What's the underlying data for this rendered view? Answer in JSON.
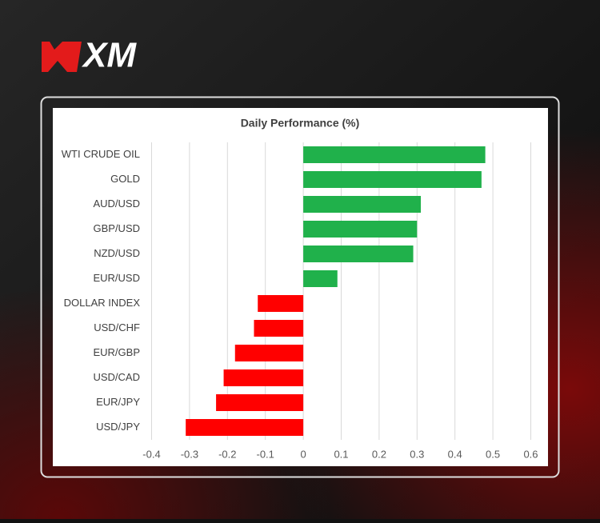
{
  "brand": "XM",
  "chart_data": {
    "type": "barh",
    "title": "Daily Performance (%)",
    "categories": [
      "WTI CRUDE OIL",
      "GOLD",
      "AUD/USD",
      "GBP/USD",
      "NZD/USD",
      "EUR/USD",
      "DOLLAR INDEX",
      "USD/CHF",
      "EUR/GBP",
      "USD/CAD",
      "EUR/JPY",
      "USD/JPY"
    ],
    "values": [
      0.48,
      0.47,
      0.31,
      0.3,
      0.29,
      0.09,
      -0.12,
      -0.13,
      -0.18,
      -0.21,
      -0.23,
      -0.31
    ],
    "positive_color": "#20b14b",
    "negative_color": "#ff0000",
    "xlim": [
      -0.4,
      0.6
    ],
    "xticks": [
      -0.4,
      -0.3,
      -0.2,
      -0.1,
      0,
      0.1,
      0.2,
      0.3,
      0.4,
      0.5,
      0.6
    ],
    "grid": true
  }
}
